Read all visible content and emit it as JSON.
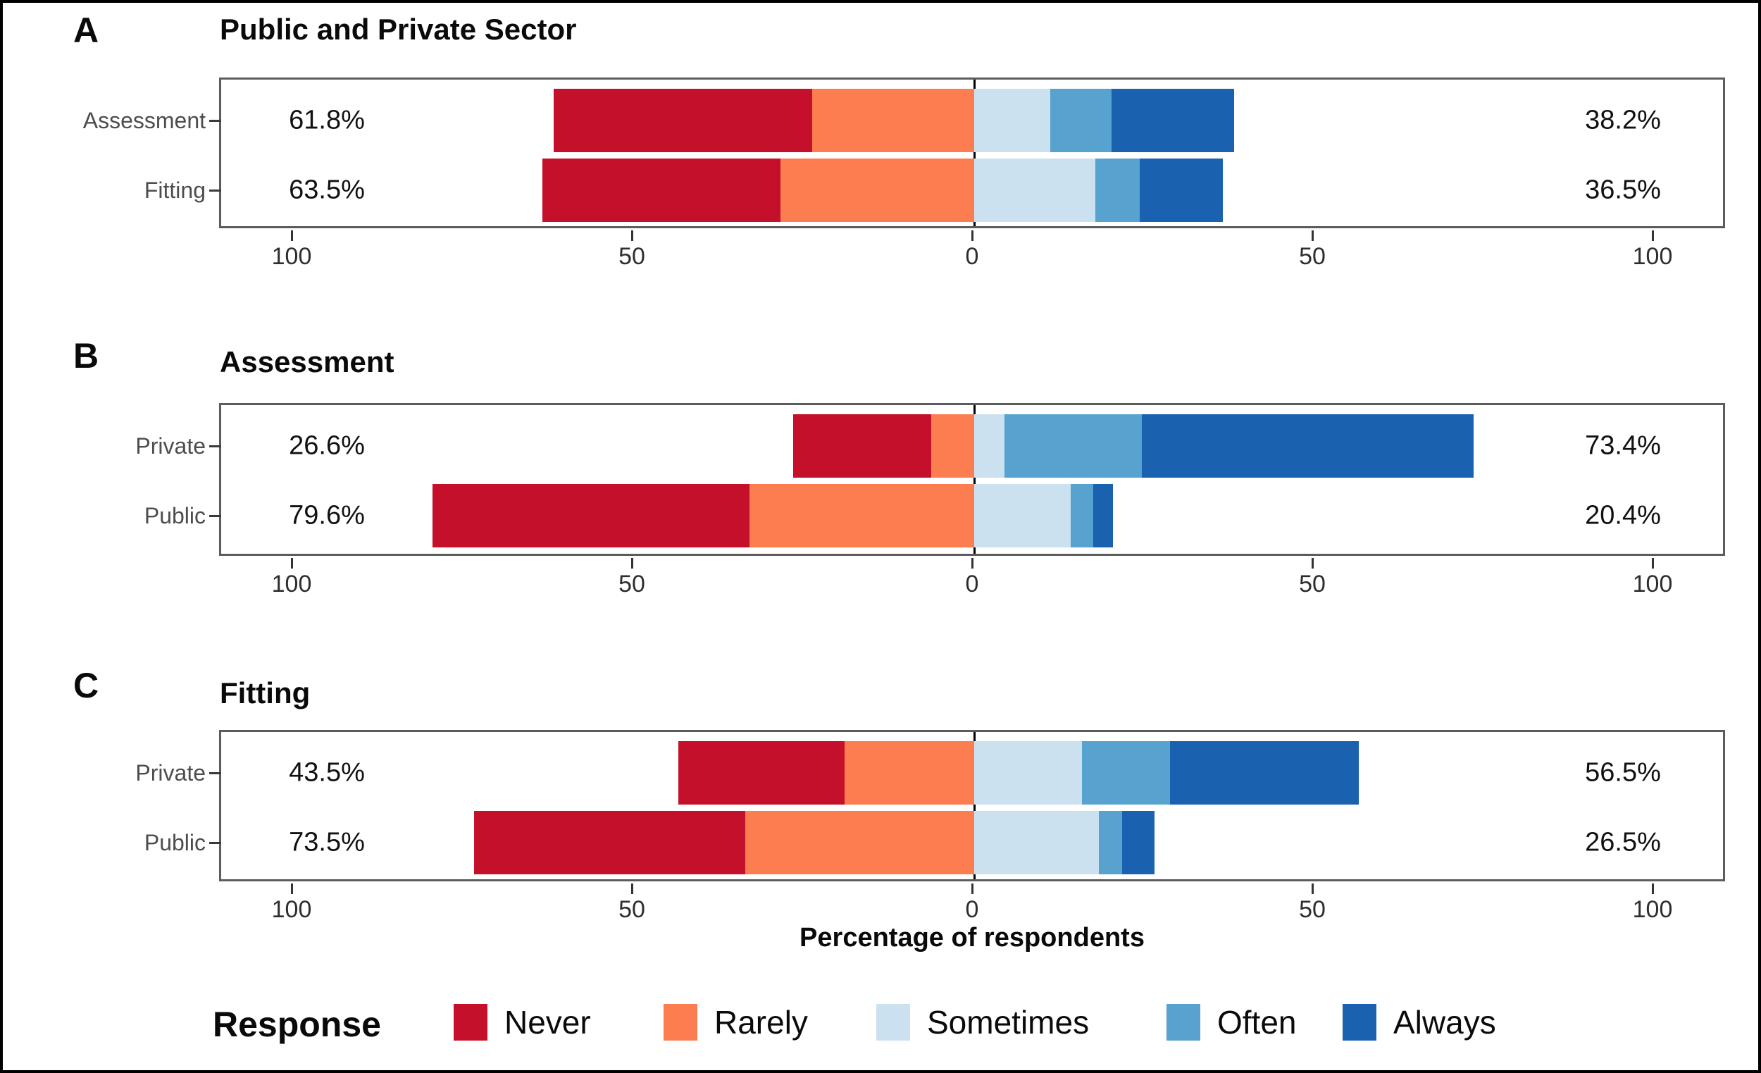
{
  "x_axis": {
    "label": "Percentage of respondents"
  },
  "legend": {
    "title": "Response",
    "items": [
      {
        "label": "Never",
        "color": "#c4102a"
      },
      {
        "label": "Rarely",
        "color": "#fb7d50"
      },
      {
        "label": "Sometimes",
        "color": "#cbe1f0"
      },
      {
        "label": "Often",
        "color": "#58a2d0"
      },
      {
        "label": "Always",
        "color": "#1a61b0"
      }
    ]
  },
  "chart_data": [
    {
      "type": "bar",
      "subtype": "diverging-stacked-horizontal",
      "panel": "A",
      "title": "Public and Private Sector",
      "categories": [
        "Assessment",
        "Fitting"
      ],
      "series": [
        {
          "name": "Never",
          "side": "left",
          "values": [
            38.0,
            35.0
          ]
        },
        {
          "name": "Rarely",
          "side": "left",
          "values": [
            23.8,
            28.5
          ]
        },
        {
          "name": "Sometimes",
          "side": "right",
          "values": [
            11.2,
            17.8
          ]
        },
        {
          "name": "Often",
          "side": "right",
          "values": [
            9.0,
            6.5
          ]
        },
        {
          "name": "Always",
          "side": "right",
          "values": [
            18.0,
            12.2
          ]
        }
      ],
      "left_total_labels": [
        "61.8%",
        "63.5%"
      ],
      "right_total_labels": [
        "38.2%",
        "36.5%"
      ],
      "x_ticks": [
        "100",
        "50",
        "0",
        "50",
        "100"
      ],
      "xlim": [
        -110,
        110
      ]
    },
    {
      "type": "bar",
      "subtype": "diverging-stacked-horizontal",
      "panel": "B",
      "title": "Assessment",
      "categories": [
        "Private",
        "Public"
      ],
      "series": [
        {
          "name": "Never",
          "side": "left",
          "values": [
            20.3,
            46.6
          ]
        },
        {
          "name": "Rarely",
          "side": "left",
          "values": [
            6.3,
            33.0
          ]
        },
        {
          "name": "Sometimes",
          "side": "right",
          "values": [
            4.5,
            14.2
          ]
        },
        {
          "name": "Often",
          "side": "right",
          "values": [
            20.1,
            3.3
          ]
        },
        {
          "name": "Always",
          "side": "right",
          "values": [
            48.8,
            2.9
          ]
        }
      ],
      "left_total_labels": [
        "26.6%",
        "79.6%"
      ],
      "right_total_labels": [
        "73.4%",
        "20.4%"
      ],
      "x_ticks": [
        "100",
        "50",
        "0",
        "50",
        "100"
      ],
      "xlim": [
        -110,
        110
      ]
    },
    {
      "type": "bar",
      "subtype": "diverging-stacked-horizontal",
      "panel": "C",
      "title": "Fitting",
      "categories": [
        "Private",
        "Public"
      ],
      "series": [
        {
          "name": "Never",
          "side": "left",
          "values": [
            24.5,
            39.9
          ]
        },
        {
          "name": "Rarely",
          "side": "left",
          "values": [
            19.0,
            33.6
          ]
        },
        {
          "name": "Sometimes",
          "side": "right",
          "values": [
            15.8,
            18.3
          ]
        },
        {
          "name": "Often",
          "side": "right",
          "values": [
            13.0,
            3.4
          ]
        },
        {
          "name": "Always",
          "side": "right",
          "values": [
            27.7,
            4.8
          ]
        }
      ],
      "left_total_labels": [
        "43.5%",
        "73.5%"
      ],
      "right_total_labels": [
        "56.5%",
        "26.5%"
      ],
      "x_ticks": [
        "100",
        "50",
        "0",
        "50",
        "100"
      ],
      "xlim": [
        -110,
        110
      ]
    }
  ]
}
